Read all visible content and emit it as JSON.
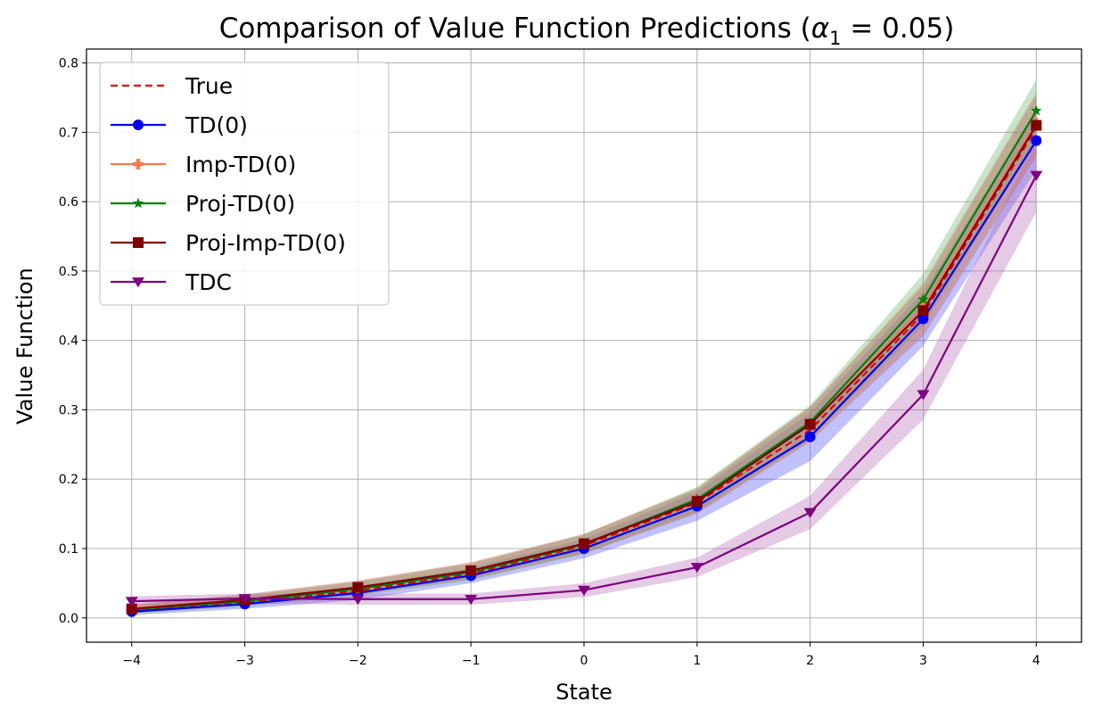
{
  "chart_data": {
    "type": "line",
    "title": "Comparison of Value Function Predictions (",
    "title_symbol": "α",
    "title_subscript": "1",
    "title_suffix": " = 0.05)",
    "xlabel": "State",
    "ylabel": "Value Function",
    "x": [
      -4,
      -3,
      -2,
      -1,
      0,
      1,
      2,
      3,
      4
    ],
    "xlim": [
      -4.4,
      4.4
    ],
    "ylim": [
      -0.035,
      0.82
    ],
    "xticks": [
      -4,
      -3,
      -2,
      -1,
      0,
      1,
      2,
      3,
      4
    ],
    "xtick_labels": [
      "−4",
      "−3",
      "−2",
      "−1",
      "0",
      "1",
      "2",
      "3",
      "4"
    ],
    "yticks": [
      0.0,
      0.1,
      0.2,
      0.3,
      0.4,
      0.5,
      0.6,
      0.7,
      0.8
    ],
    "ytick_labels": [
      "0.0",
      "0.1",
      "0.2",
      "0.3",
      "0.4",
      "0.5",
      "0.6",
      "0.7",
      "0.8"
    ],
    "grid": true,
    "legend_position": "top-left",
    "series": [
      {
        "name": "True",
        "color": "#e00000",
        "dash": "8,5",
        "marker": "none",
        "values": [
          0.012,
          0.022,
          0.039,
          0.064,
          0.104,
          0.166,
          0.271,
          0.438,
          0.706
        ],
        "band": 0
      },
      {
        "name": "TD(0)",
        "color": "#0000ee",
        "dash": "",
        "marker": "circle",
        "values": [
          0.009,
          0.02,
          0.036,
          0.061,
          0.1,
          0.161,
          0.261,
          0.431,
          0.688
        ],
        "band_lower": [
          0.004,
          0.013,
          0.026,
          0.05,
          0.086,
          0.14,
          0.226,
          0.392,
          0.646
        ],
        "band_upper": [
          0.014,
          0.027,
          0.046,
          0.072,
          0.114,
          0.182,
          0.296,
          0.47,
          0.73
        ],
        "band_color": "#4d4dff"
      },
      {
        "name": "Imp-TD(0)",
        "color": "#f47b4e",
        "dash": "",
        "marker": "plus",
        "values": [
          0.014,
          0.026,
          0.043,
          0.068,
          0.107,
          0.17,
          0.279,
          0.447,
          0.713
        ],
        "band_lower": [
          0.008,
          0.018,
          0.033,
          0.056,
          0.093,
          0.152,
          0.254,
          0.41,
          0.668
        ],
        "band_upper": [
          0.02,
          0.034,
          0.053,
          0.08,
          0.121,
          0.188,
          0.304,
          0.484,
          0.758
        ],
        "band_color": "#f4a582"
      },
      {
        "name": "Proj-TD(0)",
        "color": "#007f00",
        "dash": "",
        "marker": "star",
        "values": [
          0.012,
          0.024,
          0.042,
          0.066,
          0.106,
          0.171,
          0.282,
          0.459,
          0.731
        ],
        "band_lower": [
          0.006,
          0.016,
          0.032,
          0.054,
          0.092,
          0.153,
          0.257,
          0.422,
          0.686
        ],
        "band_upper": [
          0.018,
          0.032,
          0.052,
          0.078,
          0.12,
          0.189,
          0.307,
          0.496,
          0.776
        ],
        "band_color": "#66b266"
      },
      {
        "name": "Proj-Imp-TD(0)",
        "color": "#7f0000",
        "dash": "",
        "marker": "square",
        "values": [
          0.013,
          0.026,
          0.044,
          0.068,
          0.107,
          0.168,
          0.279,
          0.443,
          0.71
        ],
        "band_lower": [
          0.007,
          0.018,
          0.034,
          0.056,
          0.093,
          0.15,
          0.254,
          0.406,
          0.665
        ],
        "band_upper": [
          0.019,
          0.034,
          0.054,
          0.08,
          0.121,
          0.186,
          0.304,
          0.48,
          0.755
        ],
        "band_color": "#b26666"
      },
      {
        "name": "TDC",
        "color": "#7f007f",
        "dash": "",
        "marker": "triangle-down",
        "values": [
          0.024,
          0.028,
          0.027,
          0.027,
          0.04,
          0.073,
          0.152,
          0.322,
          0.638
        ],
        "band_lower": [
          0.017,
          0.021,
          0.019,
          0.019,
          0.03,
          0.059,
          0.128,
          0.286,
          0.585
        ],
        "band_upper": [
          0.031,
          0.035,
          0.035,
          0.035,
          0.05,
          0.087,
          0.176,
          0.358,
          0.691
        ],
        "band_color": "#b266b2"
      }
    ]
  }
}
